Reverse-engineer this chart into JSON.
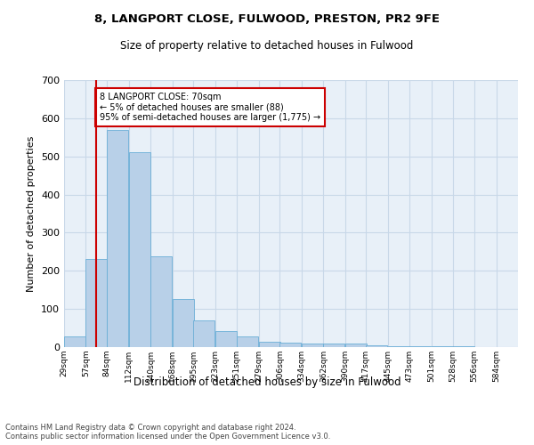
{
  "title_line1": "8, LANGPORT CLOSE, FULWOOD, PRESTON, PR2 9FE",
  "title_line2": "Size of property relative to detached houses in Fulwood",
  "xlabel": "Distribution of detached houses by size in Fulwood",
  "ylabel": "Number of detached properties",
  "footnote": "Contains HM Land Registry data © Crown copyright and database right 2024.\nContains public sector information licensed under the Open Government Licence v3.0.",
  "annotation_line1": "8 LANGPORT CLOSE: 70sqm",
  "annotation_line2": "← 5% of detached houses are smaller (88)",
  "annotation_line3": "95% of semi-detached houses are larger (1,775) →",
  "property_line_x": 70,
  "bar_color": "#b8d0e8",
  "bar_edge_color": "#6aaed6",
  "annotation_box_edge_color": "#cc0000",
  "property_line_color": "#cc0000",
  "grid_color": "#c8d8e8",
  "background_color": "#e8f0f8",
  "bin_labels": [
    "29sqm",
    "57sqm",
    "84sqm",
    "112sqm",
    "140sqm",
    "168sqm",
    "195sqm",
    "223sqm",
    "251sqm",
    "279sqm",
    "306sqm",
    "334sqm",
    "362sqm",
    "390sqm",
    "417sqm",
    "445sqm",
    "473sqm",
    "501sqm",
    "528sqm",
    "556sqm",
    "584sqm"
  ],
  "bin_edges": [
    29,
    57,
    84,
    112,
    140,
    168,
    195,
    223,
    251,
    279,
    306,
    334,
    362,
    390,
    417,
    445,
    473,
    501,
    528,
    556,
    584
  ],
  "counts": [
    28,
    232,
    570,
    510,
    238,
    127,
    70,
    42,
    27,
    15,
    11,
    10,
    10,
    9,
    5,
    3,
    3,
    2,
    2,
    1
  ],
  "ylim": [
    0,
    700
  ],
  "yticks": [
    0,
    100,
    200,
    300,
    400,
    500,
    600,
    700
  ]
}
